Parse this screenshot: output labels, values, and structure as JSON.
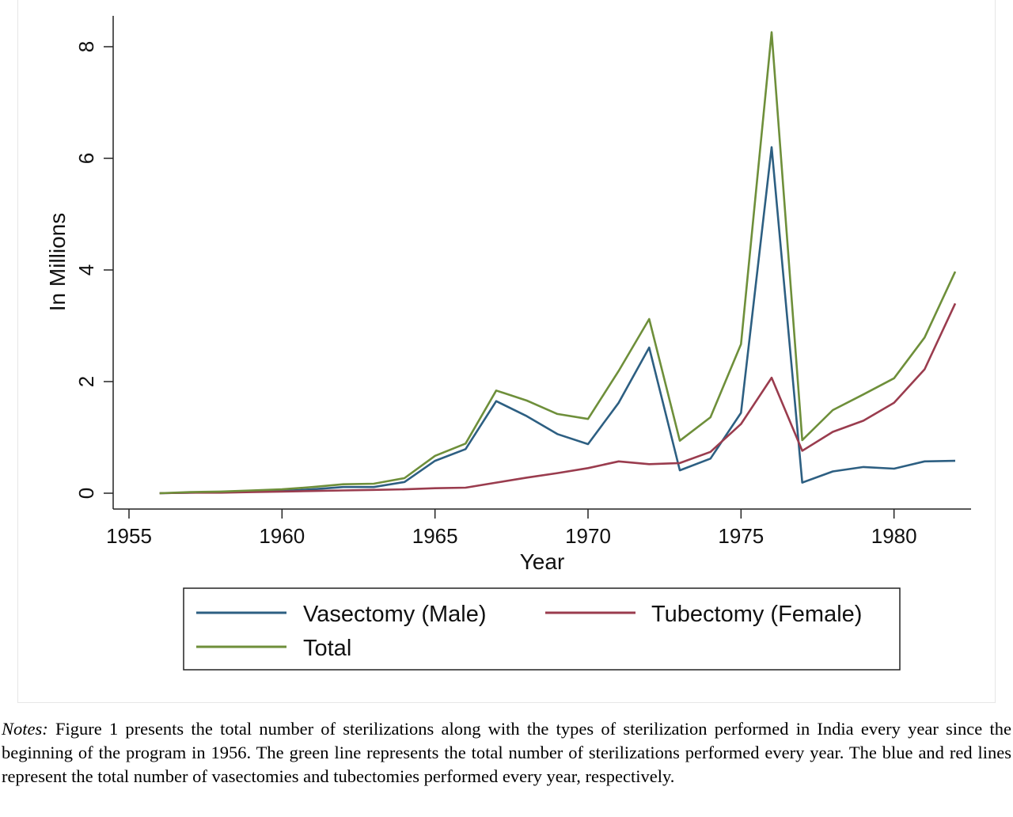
{
  "chart_data": {
    "type": "line",
    "xlabel": "Year",
    "ylabel": "In Millions",
    "xlim": [
      1954,
      1982.5
    ],
    "ylim": [
      0,
      8.6
    ],
    "xticks": [
      1955,
      1960,
      1965,
      1970,
      1975,
      1980
    ],
    "yticks": [
      0,
      2,
      4,
      6,
      8
    ],
    "grid": false,
    "legend_position": "bottom",
    "x": [
      1956,
      1957,
      1958,
      1959,
      1960,
      1961,
      1962,
      1963,
      1964,
      1965,
      1966,
      1967,
      1968,
      1969,
      1970,
      1971,
      1972,
      1973,
      1974,
      1975,
      1976,
      1977,
      1978,
      1979,
      1980,
      1981,
      1982
    ],
    "series": [
      {
        "name": "Vasectomy (Male)",
        "color": "#2d5f82",
        "values": [
          0.0,
          0.01,
          0.02,
          0.03,
          0.04,
          0.07,
          0.11,
          0.11,
          0.2,
          0.58,
          0.79,
          1.65,
          1.38,
          1.06,
          0.88,
          1.62,
          2.61,
          0.41,
          0.62,
          1.44,
          6.2,
          0.19,
          0.39,
          0.47,
          0.44,
          0.57,
          0.58
        ]
      },
      {
        "name": "Tubectomy (Female)",
        "color": "#9a3c4e",
        "values": [
          0.0,
          0.01,
          0.01,
          0.02,
          0.03,
          0.04,
          0.05,
          0.06,
          0.07,
          0.09,
          0.1,
          0.19,
          0.28,
          0.36,
          0.45,
          0.57,
          0.52,
          0.54,
          0.74,
          1.24,
          2.07,
          0.76,
          1.1,
          1.3,
          1.62,
          2.22,
          3.4
        ]
      },
      {
        "name": "Total",
        "color": "#6e8f3a",
        "values": [
          0.0,
          0.02,
          0.03,
          0.05,
          0.07,
          0.11,
          0.16,
          0.17,
          0.27,
          0.67,
          0.89,
          1.84,
          1.66,
          1.42,
          1.33,
          2.19,
          3.12,
          0.94,
          1.36,
          2.67,
          8.26,
          0.95,
          1.49,
          1.77,
          2.06,
          2.79,
          3.97
        ]
      }
    ]
  },
  "notes": {
    "label": "Notes:",
    "text": " Figure 1 presents the total number of sterilizations along with the types of sterilization performed in India every year since the beginning of the program in 1956. The green line represents the total number of sterilizations performed every year. The blue and red lines represent the total number of vasectomies and tubectomies performed every year, respectively."
  }
}
